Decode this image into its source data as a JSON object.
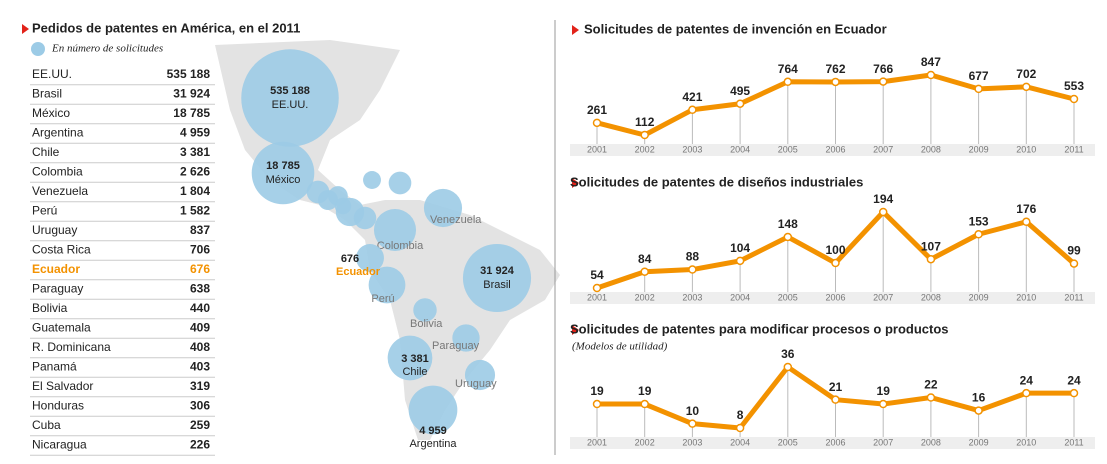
{
  "chart_data": [
    {
      "type": "bubble_map",
      "title": "Pedidos de patentes en América, en el 2011",
      "legend": "En número de solicitudes",
      "color": "#9ccbe6",
      "highlight": "Ecuador",
      "highlight_color": "#f39200",
      "categories": [
        "EE.UU.",
        "Brasil",
        "México",
        "Argentina",
        "Chile",
        "Colombia",
        "Venezuela",
        "Perú",
        "Uruguay",
        "Costa Rica",
        "Ecuador",
        "Paraguay",
        "Bolivia",
        "Guatemala",
        "R. Dominicana",
        "Panamá",
        "El Salvador",
        "Honduras",
        "Cuba",
        "Nicaragua"
      ],
      "values": [
        535188,
        31924,
        18785,
        4959,
        3381,
        2626,
        1804,
        1582,
        837,
        706,
        676,
        638,
        440,
        409,
        408,
        403,
        319,
        306,
        259,
        226
      ],
      "value_labels": [
        "535 188",
        "31 924",
        "18 785",
        "4 959",
        "3 381",
        "2 626",
        "1 804",
        "1 582",
        "837",
        "706",
        "676",
        "638",
        "440",
        "409",
        "408",
        "403",
        "319",
        "306",
        "259",
        "226"
      ]
    },
    {
      "type": "line",
      "title": "Solicitudes de patentes de invención en Ecuador",
      "color": "#f39200",
      "categories": [
        "2001",
        "2002",
        "2003",
        "2004",
        "2005",
        "2006",
        "2007",
        "2008",
        "2009",
        "2010",
        "2011"
      ],
      "values": [
        261,
        112,
        421,
        495,
        764,
        762,
        766,
        847,
        677,
        702,
        553
      ]
    },
    {
      "type": "line",
      "title": "Solicitudes de patentes de diseños industriales",
      "color": "#f39200",
      "categories": [
        "2001",
        "2002",
        "2003",
        "2004",
        "2005",
        "2006",
        "2007",
        "2008",
        "2009",
        "2010",
        "2011"
      ],
      "values": [
        54,
        84,
        88,
        104,
        148,
        100,
        194,
        107,
        153,
        176,
        99
      ]
    },
    {
      "type": "line",
      "title": "Solicitudes de patentes para modificar procesos o productos",
      "subtitle": "(Modelos de utilidad)",
      "color": "#f39200",
      "categories": [
        "2001",
        "2002",
        "2003",
        "2004",
        "2005",
        "2006",
        "2007",
        "2008",
        "2009",
        "2010",
        "2011"
      ],
      "values": [
        19,
        19,
        10,
        8,
        36,
        21,
        19,
        22,
        16,
        24,
        24
      ]
    }
  ]
}
